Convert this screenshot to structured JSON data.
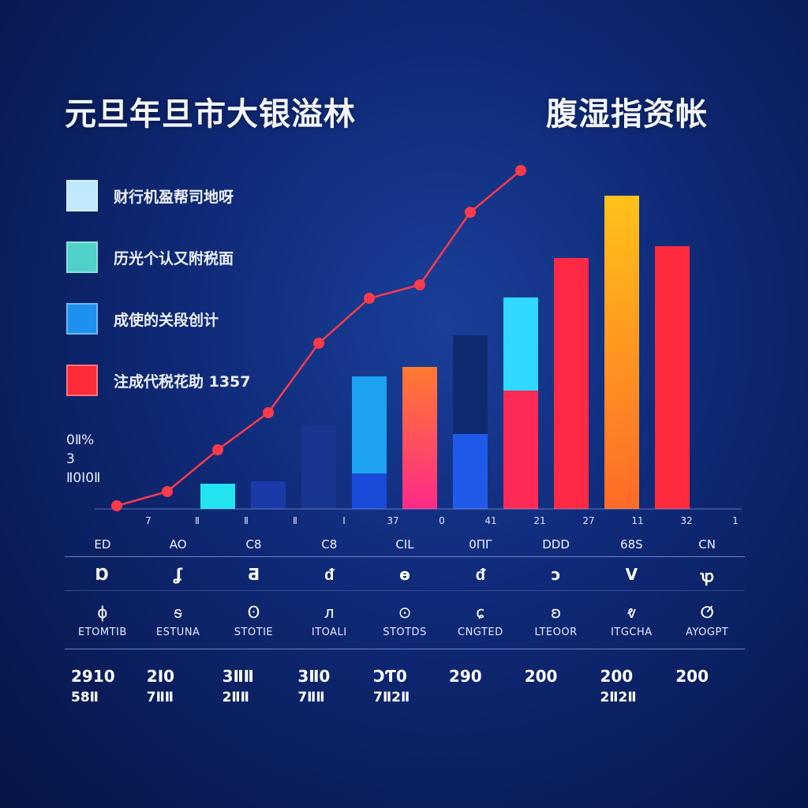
{
  "header": {
    "title_left": "元旦年旦市大银溢林",
    "title_right": "腹湿指资帐"
  },
  "legend": [
    {
      "label": "财行机盈帮司地呀",
      "color": "#bfe9ff"
    },
    {
      "label": "历光个认又附税面",
      "color": "#4fd0c8"
    },
    {
      "label": "成使的关段创计",
      "color": "#1e90f0"
    },
    {
      "label": "注成代税花助 1357",
      "color": "#ff2a3a"
    }
  ],
  "yaxis": {
    "lines": [
      "0Ⅱ%",
      "3",
      "Ⅱ0Ⅰ0Ⅱ"
    ]
  },
  "chart_data": {
    "type": "bar",
    "x_tick_labels": [
      "7",
      "Ⅱ",
      "Ⅱ",
      "Ⅱ",
      "Ⅰ",
      "37",
      "0",
      "41",
      "21",
      "27",
      "11",
      "32",
      "1"
    ],
    "bars": [
      {
        "index": 2,
        "layers": [
          {
            "value": 32,
            "color": "#22e3f0"
          }
        ]
      },
      {
        "index": 3,
        "layers": [
          {
            "value": 35,
            "color": "#1a3aa8"
          }
        ]
      },
      {
        "index": 4,
        "layers": [
          {
            "value": 105,
            "color": "#183690"
          }
        ]
      },
      {
        "index": 5,
        "layers": [
          {
            "value": 45,
            "color": "#1a4ad8"
          },
          {
            "value": 123,
            "color": "#1da2f0"
          }
        ]
      },
      {
        "index": 6,
        "layers": [
          {
            "value": 180,
            "color": "gradient-pink-orange"
          }
        ]
      },
      {
        "index": 7,
        "layers": [
          {
            "value": 95,
            "color": "#1f5ae8"
          },
          {
            "value": 125,
            "color": "#0f2a70"
          }
        ]
      },
      {
        "index": 8,
        "layers": [
          {
            "value": 150,
            "color": "#ff2a55"
          },
          {
            "value": 118,
            "color": "#2fd8ff"
          }
        ]
      },
      {
        "index": 9,
        "layers": [
          {
            "value": 318,
            "color": "#ff2845"
          }
        ]
      },
      {
        "index": 10,
        "layers": [
          {
            "value": 397,
            "color": "gradient-orange-yellow"
          }
        ]
      },
      {
        "index": 11,
        "layers": [
          {
            "value": 333,
            "color": "#ff2a3e"
          }
        ]
      }
    ],
    "line_series": {
      "color": "#ff3a4a",
      "points": [
        {
          "i": 0,
          "v": 4
        },
        {
          "i": 1,
          "v": 22
        },
        {
          "i": 2,
          "v": 75
        },
        {
          "i": 3,
          "v": 122
        },
        {
          "i": 4,
          "v": 210
        },
        {
          "i": 5,
          "v": 267
        },
        {
          "i": 6,
          "v": 284
        },
        {
          "i": 7,
          "v": 376
        },
        {
          "i": 8,
          "v": 429
        }
      ]
    },
    "grid": false,
    "legend_position": "left"
  },
  "table": {
    "codes": [
      "ED",
      "AO",
      "C8",
      "C8",
      "CIL",
      "0ΠΓ",
      "DDD",
      "68S",
      "CN"
    ],
    "symbols": [
      "Ɒ",
      "ʆ",
      "Ƌ",
      "ᵭ",
      "ɵ",
      "ᵭ",
      "ɔ",
      "V",
      "ꝕ"
    ],
    "icons": [
      "ɸ",
      "ᵴ",
      "ʘ",
      "ᴫ",
      "⊙",
      "ɕ",
      "ʚ",
      "ⱴ",
      "ⵚ"
    ],
    "labels": [
      "ETOMTIB",
      "ESTUNA",
      "STOTIE",
      "ITOALI",
      "STOTDS",
      "CNGTED",
      "LTEOOR",
      "ITGCHA",
      "AYOGPT"
    ],
    "values_1": [
      "2910",
      "2Ⅰ0",
      "3ⅡⅡ",
      "3Ⅱ0",
      "ƆƬ0",
      "290",
      "200",
      "200",
      "200"
    ],
    "values_2": [
      "58Ⅱ",
      "7ⅡⅡ",
      "2ⅡⅡ",
      "7ⅡⅡ",
      "7Ⅱ2Ⅱ",
      "",
      "",
      "2Ⅱ2Ⅱ",
      ""
    ]
  }
}
